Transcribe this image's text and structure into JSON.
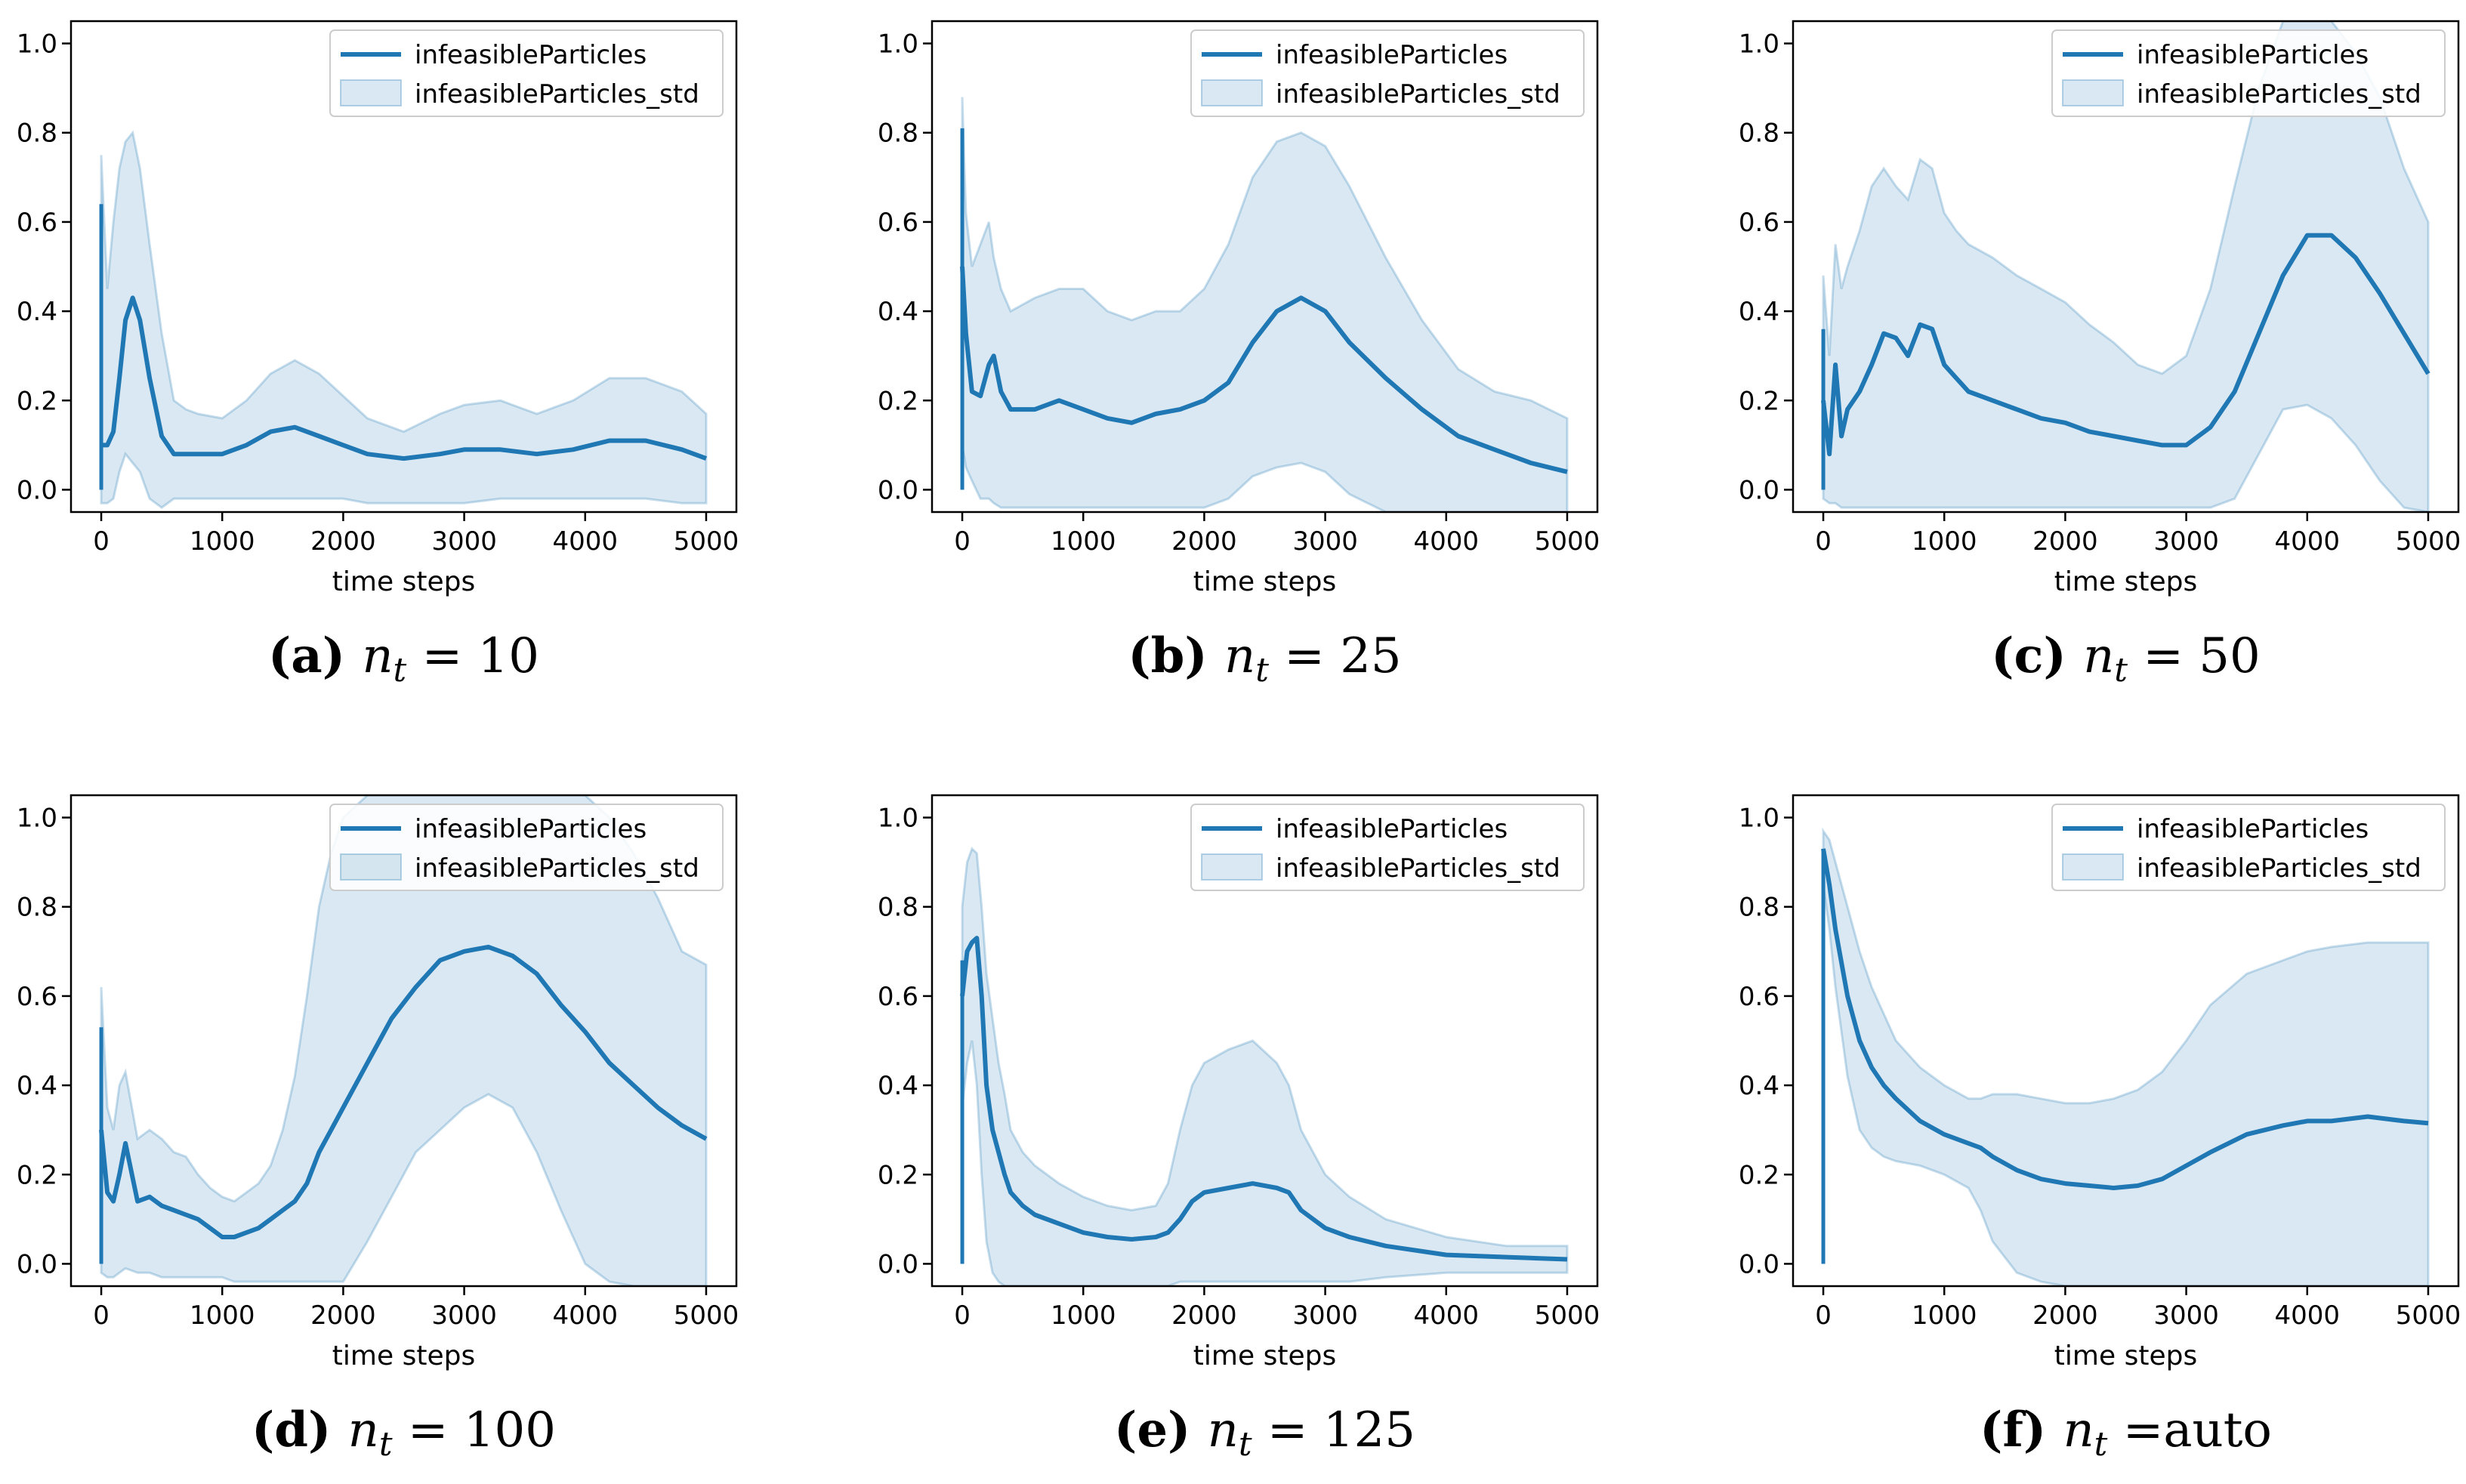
{
  "figure": {
    "colors": {
      "line": "#1f77b4",
      "band": "#1f77b4",
      "axis": "#000000"
    }
  },
  "chart_data": [
    {
      "type": "line",
      "caption": {
        "letter": "(a)",
        "var": "n",
        "sub": "t",
        "eq": " = ",
        "value": "10"
      },
      "xlabel": "time steps",
      "ylabel": "",
      "xlim": [
        -250,
        5250
      ],
      "ylim": [
        -0.05,
        1.05
      ],
      "xticks": [
        "0",
        "1000",
        "2000",
        "3000",
        "4000",
        "5000"
      ],
      "yticks": [
        "0.0",
        "0.2",
        "0.4",
        "0.6",
        "0.8",
        "1.0"
      ],
      "legend": {
        "placement": "top-right",
        "entries": [
          "infeasibleParticles",
          "infeasibleParticles_std"
        ]
      },
      "spike": [
        0.0,
        0.64
      ],
      "series": [
        {
          "name": "infeasibleParticles",
          "x": [
            0,
            50,
            100,
            150,
            200,
            260,
            320,
            400,
            500,
            600,
            700,
            800,
            1000,
            1200,
            1400,
            1600,
            1800,
            2000,
            2200,
            2500,
            2800,
            3000,
            3300,
            3600,
            3900,
            4200,
            4500,
            4800,
            5000
          ],
          "mean": [
            0.1,
            0.1,
            0.13,
            0.25,
            0.38,
            0.43,
            0.38,
            0.25,
            0.12,
            0.08,
            0.08,
            0.08,
            0.08,
            0.1,
            0.13,
            0.14,
            0.12,
            0.1,
            0.08,
            0.07,
            0.08,
            0.09,
            0.09,
            0.08,
            0.09,
            0.11,
            0.11,
            0.09,
            0.07
          ],
          "upper": [
            0.75,
            0.45,
            0.6,
            0.72,
            0.78,
            0.8,
            0.72,
            0.55,
            0.35,
            0.2,
            0.18,
            0.17,
            0.16,
            0.2,
            0.26,
            0.29,
            0.26,
            0.21,
            0.16,
            0.13,
            0.17,
            0.19,
            0.2,
            0.17,
            0.2,
            0.25,
            0.25,
            0.22,
            0.17
          ],
          "lower": [
            -0.03,
            -0.03,
            -0.02,
            0.04,
            0.08,
            0.06,
            0.04,
            -0.02,
            -0.04,
            -0.02,
            -0.02,
            -0.02,
            -0.02,
            -0.02,
            -0.02,
            -0.02,
            -0.02,
            -0.02,
            -0.03,
            -0.03,
            -0.03,
            -0.03,
            -0.02,
            -0.02,
            -0.02,
            -0.02,
            -0.02,
            -0.03,
            -0.03
          ]
        }
      ]
    },
    {
      "type": "line",
      "caption": {
        "letter": "(b)",
        "var": "n",
        "sub": "t",
        "eq": " = ",
        "value": "25"
      },
      "xlabel": "time steps",
      "ylabel": "",
      "xlim": [
        -250,
        5250
      ],
      "ylim": [
        -0.05,
        1.05
      ],
      "xticks": [
        "0",
        "1000",
        "2000",
        "3000",
        "4000",
        "5000"
      ],
      "yticks": [
        "0.0",
        "0.2",
        "0.4",
        "0.6",
        "0.8",
        "1.0"
      ],
      "legend": {
        "placement": "top-right",
        "entries": [
          "infeasibleParticles",
          "infeasibleParticles_std"
        ]
      },
      "spike": [
        0.0,
        0.81
      ],
      "series": [
        {
          "name": "infeasibleParticles",
          "x": [
            0,
            30,
            80,
            150,
            220,
            260,
            320,
            400,
            600,
            800,
            1000,
            1200,
            1400,
            1600,
            1800,
            2000,
            2200,
            2400,
            2600,
            2800,
            3000,
            3200,
            3500,
            3800,
            4100,
            4400,
            4700,
            5000
          ],
          "mean": [
            0.5,
            0.35,
            0.22,
            0.21,
            0.28,
            0.3,
            0.22,
            0.18,
            0.18,
            0.2,
            0.18,
            0.16,
            0.15,
            0.17,
            0.18,
            0.2,
            0.24,
            0.33,
            0.4,
            0.43,
            0.4,
            0.33,
            0.25,
            0.18,
            0.12,
            0.09,
            0.06,
            0.04
          ],
          "upper": [
            0.88,
            0.62,
            0.5,
            0.55,
            0.6,
            0.52,
            0.45,
            0.4,
            0.43,
            0.45,
            0.45,
            0.4,
            0.38,
            0.4,
            0.4,
            0.45,
            0.55,
            0.7,
            0.78,
            0.8,
            0.77,
            0.68,
            0.52,
            0.38,
            0.27,
            0.22,
            0.2,
            0.16
          ],
          "lower": [
            0.1,
            0.05,
            0.02,
            -0.02,
            -0.02,
            -0.03,
            -0.04,
            -0.04,
            -0.04,
            -0.04,
            -0.04,
            -0.04,
            -0.04,
            -0.04,
            -0.04,
            -0.04,
            -0.02,
            0.03,
            0.05,
            0.06,
            0.04,
            -0.01,
            -0.05,
            -0.05,
            -0.05,
            -0.05,
            -0.05,
            -0.05
          ]
        }
      ]
    },
    {
      "type": "line",
      "caption": {
        "letter": "(c)",
        "var": "n",
        "sub": "t",
        "eq": " = ",
        "value": "50"
      },
      "xlabel": "time steps",
      "ylabel": "",
      "xlim": [
        -250,
        5250
      ],
      "ylim": [
        -0.05,
        1.05
      ],
      "xticks": [
        "0",
        "1000",
        "2000",
        "3000",
        "4000",
        "5000"
      ],
      "yticks": [
        "0.0",
        "0.2",
        "0.4",
        "0.6",
        "0.8",
        "1.0"
      ],
      "legend": {
        "placement": "top-right",
        "entries": [
          "infeasibleParticles",
          "infeasibleParticles_std"
        ]
      },
      "spike": [
        0.0,
        0.36
      ],
      "series": [
        {
          "name": "infeasibleParticles",
          "x": [
            0,
            50,
            100,
            150,
            200,
            300,
            400,
            500,
            600,
            700,
            800,
            900,
            1000,
            1100,
            1200,
            1400,
            1600,
            1800,
            2000,
            2200,
            2400,
            2600,
            2800,
            3000,
            3200,
            3400,
            3600,
            3800,
            4000,
            4200,
            4400,
            4600,
            4800,
            5000
          ],
          "mean": [
            0.2,
            0.08,
            0.28,
            0.12,
            0.18,
            0.22,
            0.28,
            0.35,
            0.34,
            0.3,
            0.37,
            0.36,
            0.28,
            0.25,
            0.22,
            0.2,
            0.18,
            0.16,
            0.15,
            0.13,
            0.12,
            0.11,
            0.1,
            0.1,
            0.14,
            0.22,
            0.35,
            0.48,
            0.57,
            0.57,
            0.52,
            0.44,
            0.35,
            0.26
          ],
          "upper": [
            0.48,
            0.3,
            0.55,
            0.45,
            0.5,
            0.58,
            0.68,
            0.72,
            0.68,
            0.65,
            0.74,
            0.72,
            0.62,
            0.58,
            0.55,
            0.52,
            0.48,
            0.45,
            0.42,
            0.37,
            0.33,
            0.28,
            0.26,
            0.3,
            0.45,
            0.68,
            0.9,
            1.05,
            1.05,
            1.05,
            0.98,
            0.88,
            0.72,
            0.6
          ],
          "lower": [
            -0.02,
            -0.03,
            -0.03,
            -0.04,
            -0.04,
            -0.04,
            -0.04,
            -0.04,
            -0.04,
            -0.04,
            -0.04,
            -0.04,
            -0.04,
            -0.04,
            -0.04,
            -0.04,
            -0.04,
            -0.04,
            -0.04,
            -0.04,
            -0.04,
            -0.04,
            -0.04,
            -0.04,
            -0.04,
            -0.02,
            0.08,
            0.18,
            0.19,
            0.16,
            0.1,
            0.02,
            -0.04,
            -0.05
          ]
        }
      ]
    },
    {
      "type": "line",
      "caption": {
        "letter": "(d)",
        "var": "n",
        "sub": "t",
        "eq": " = ",
        "value": "100"
      },
      "xlabel": "time steps",
      "ylabel": "",
      "xlim": [
        -250,
        5250
      ],
      "ylim": [
        -0.05,
        1.05
      ],
      "xticks": [
        "0",
        "1000",
        "2000",
        "3000",
        "4000",
        "5000"
      ],
      "yticks": [
        "0.0",
        "0.2",
        "0.4",
        "0.6",
        "0.8",
        "1.0"
      ],
      "legend": {
        "placement": "top-right",
        "entries": [
          "infeasibleParticles",
          "infeasibleParticles_std"
        ]
      },
      "spike": [
        0.0,
        0.53
      ],
      "series": [
        {
          "name": "infeasibleParticles",
          "x": [
            0,
            50,
            100,
            150,
            200,
            300,
            400,
            500,
            600,
            700,
            800,
            900,
            1000,
            1100,
            1200,
            1300,
            1400,
            1500,
            1600,
            1700,
            1800,
            1900,
            2000,
            2200,
            2400,
            2600,
            2800,
            3000,
            3200,
            3400,
            3600,
            3800,
            4000,
            4200,
            4400,
            4600,
            4800,
            5000
          ],
          "mean": [
            0.3,
            0.16,
            0.14,
            0.2,
            0.27,
            0.14,
            0.15,
            0.13,
            0.12,
            0.11,
            0.1,
            0.08,
            0.06,
            0.06,
            0.07,
            0.08,
            0.1,
            0.12,
            0.14,
            0.18,
            0.25,
            0.3,
            0.35,
            0.45,
            0.55,
            0.62,
            0.68,
            0.7,
            0.71,
            0.69,
            0.65,
            0.58,
            0.52,
            0.45,
            0.4,
            0.35,
            0.31,
            0.28
          ],
          "upper": [
            0.62,
            0.35,
            0.3,
            0.4,
            0.43,
            0.28,
            0.3,
            0.28,
            0.25,
            0.24,
            0.2,
            0.17,
            0.15,
            0.14,
            0.16,
            0.18,
            0.22,
            0.3,
            0.42,
            0.6,
            0.8,
            0.92,
            1.0,
            1.05,
            1.05,
            1.05,
            1.05,
            1.05,
            1.05,
            1.05,
            1.05,
            1.05,
            1.05,
            1.0,
            0.92,
            0.82,
            0.7,
            0.67
          ],
          "lower": [
            -0.02,
            -0.03,
            -0.03,
            -0.02,
            -0.01,
            -0.02,
            -0.02,
            -0.03,
            -0.03,
            -0.03,
            -0.03,
            -0.03,
            -0.03,
            -0.04,
            -0.04,
            -0.04,
            -0.04,
            -0.04,
            -0.04,
            -0.04,
            -0.04,
            -0.04,
            -0.04,
            0.05,
            0.15,
            0.25,
            0.3,
            0.35,
            0.38,
            0.35,
            0.25,
            0.12,
            0.0,
            -0.04,
            -0.05,
            -0.05,
            -0.05,
            -0.05
          ]
        }
      ]
    },
    {
      "type": "line",
      "caption": {
        "letter": "(e)",
        "var": "n",
        "sub": "t",
        "eq": " = ",
        "value": "125"
      },
      "xlabel": "time steps",
      "ylabel": "",
      "xlim": [
        -250,
        5250
      ],
      "ylim": [
        -0.05,
        1.05
      ],
      "xticks": [
        "0",
        "1000",
        "2000",
        "3000",
        "4000",
        "5000"
      ],
      "yticks": [
        "0.0",
        "0.2",
        "0.4",
        "0.6",
        "0.8",
        "1.0"
      ],
      "legend": {
        "placement": "top-right",
        "entries": [
          "infeasibleParticles",
          "infeasibleParticles_std"
        ]
      },
      "spike": [
        0.0,
        0.68
      ],
      "series": [
        {
          "name": "infeasibleParticles",
          "x": [
            0,
            40,
            80,
            120,
            160,
            200,
            250,
            300,
            350,
            400,
            500,
            600,
            800,
            1000,
            1200,
            1400,
            1600,
            1700,
            1800,
            1900,
            2000,
            2200,
            2400,
            2600,
            2700,
            2800,
            3000,
            3200,
            3500,
            4000,
            4500,
            5000
          ],
          "mean": [
            0.6,
            0.7,
            0.72,
            0.73,
            0.6,
            0.4,
            0.3,
            0.25,
            0.2,
            0.16,
            0.13,
            0.11,
            0.09,
            0.07,
            0.06,
            0.055,
            0.06,
            0.07,
            0.1,
            0.14,
            0.16,
            0.17,
            0.18,
            0.17,
            0.16,
            0.12,
            0.08,
            0.06,
            0.04,
            0.02,
            0.015,
            0.01
          ],
          "upper": [
            0.8,
            0.9,
            0.93,
            0.92,
            0.8,
            0.65,
            0.55,
            0.45,
            0.38,
            0.3,
            0.25,
            0.22,
            0.18,
            0.15,
            0.13,
            0.12,
            0.13,
            0.18,
            0.3,
            0.4,
            0.45,
            0.48,
            0.5,
            0.45,
            0.4,
            0.3,
            0.2,
            0.15,
            0.1,
            0.06,
            0.04,
            0.04
          ],
          "lower": [
            0.35,
            0.45,
            0.5,
            0.4,
            0.2,
            0.05,
            -0.02,
            -0.04,
            -0.05,
            -0.05,
            -0.05,
            -0.05,
            -0.05,
            -0.05,
            -0.05,
            -0.05,
            -0.05,
            -0.05,
            -0.04,
            -0.04,
            -0.04,
            -0.04,
            -0.04,
            -0.04,
            -0.04,
            -0.04,
            -0.04,
            -0.04,
            -0.03,
            -0.02,
            -0.02,
            -0.02
          ]
        }
      ]
    },
    {
      "type": "line",
      "caption": {
        "letter": "(f)",
        "var": "n",
        "sub": "t",
        "eq": " =",
        "value": "auto"
      },
      "xlabel": "time steps",
      "ylabel": "",
      "xlim": [
        -250,
        5250
      ],
      "ylim": [
        -0.05,
        1.05
      ],
      "xticks": [
        "0",
        "1000",
        "2000",
        "3000",
        "4000",
        "5000"
      ],
      "yticks": [
        "0.0",
        "0.2",
        "0.4",
        "0.6",
        "0.8",
        "1.0"
      ],
      "legend": {
        "placement": "top-right",
        "entries": [
          "infeasibleParticles",
          "infeasibleParticles_std"
        ]
      },
      "spike": [
        0.0,
        0.93
      ],
      "series": [
        {
          "name": "infeasibleParticles",
          "x": [
            0,
            50,
            100,
            200,
            300,
            400,
            500,
            600,
            800,
            1000,
            1200,
            1300,
            1400,
            1600,
            1800,
            2000,
            2200,
            2400,
            2600,
            2800,
            3000,
            3200,
            3500,
            3800,
            4000,
            4200,
            4500,
            4800,
            5000
          ],
          "mean": [
            0.93,
            0.85,
            0.75,
            0.6,
            0.5,
            0.44,
            0.4,
            0.37,
            0.32,
            0.29,
            0.27,
            0.26,
            0.24,
            0.21,
            0.19,
            0.18,
            0.175,
            0.17,
            0.175,
            0.19,
            0.22,
            0.25,
            0.29,
            0.31,
            0.32,
            0.32,
            0.33,
            0.32,
            0.315
          ],
          "upper": [
            0.97,
            0.95,
            0.9,
            0.8,
            0.7,
            0.62,
            0.56,
            0.5,
            0.44,
            0.4,
            0.37,
            0.37,
            0.38,
            0.38,
            0.37,
            0.36,
            0.36,
            0.37,
            0.39,
            0.43,
            0.5,
            0.58,
            0.65,
            0.68,
            0.7,
            0.71,
            0.72,
            0.72,
            0.72
          ],
          "lower": [
            0.85,
            0.75,
            0.62,
            0.42,
            0.3,
            0.26,
            0.24,
            0.23,
            0.22,
            0.2,
            0.17,
            0.12,
            0.05,
            -0.02,
            -0.04,
            -0.05,
            -0.05,
            -0.05,
            -0.05,
            -0.05,
            -0.05,
            -0.05,
            -0.05,
            -0.05,
            -0.05,
            -0.05,
            -0.05,
            -0.05,
            -0.05
          ]
        }
      ]
    }
  ]
}
